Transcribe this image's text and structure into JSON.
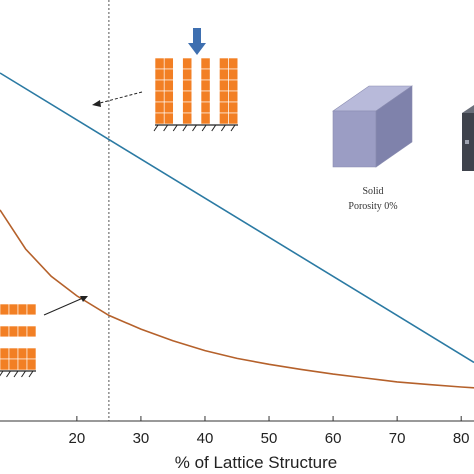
{
  "chart_data": {
    "type": "line",
    "xlabel": "% of Lattice Structure",
    "xlim": [
      8,
      82
    ],
    "ylim": [
      0,
      1
    ],
    "x_ticks": [
      20,
      30,
      40,
      50,
      60,
      70,
      80
    ],
    "x_tick_labels": [
      "20",
      "30",
      "40",
      "50",
      "60",
      "70",
      "80"
    ],
    "grid": false,
    "reference_line": {
      "x": 25,
      "style": "dotted"
    },
    "series": [
      {
        "color": "#2b7aa3",
        "x": [
          8,
          82
        ],
        "y": [
          0.89,
          0.15
        ]
      },
      {
        "color": "#b5612b",
        "x": [
          8,
          12,
          16,
          20,
          25,
          30,
          35,
          40,
          45,
          50,
          55,
          60,
          65,
          70,
          75,
          80,
          82
        ],
        "y": [
          0.54,
          0.44,
          0.37,
          0.32,
          0.27,
          0.235,
          0.205,
          0.18,
          0.16,
          0.145,
          0.132,
          0.12,
          0.11,
          0.1,
          0.093,
          0.087,
          0.085
        ]
      }
    ],
    "annotations": [
      {
        "text": "Solid",
        "lines": [
          "Solid",
          "Porosity 0%"
        ]
      }
    ]
  },
  "cube": {
    "line1": "Solid",
    "line2": "Porosity 0%"
  },
  "colors": {
    "lattice_orange": "#f27f24",
    "arrow_blue": "#3e6fb0",
    "cube_face_front": "#9b9dc4",
    "cube_face_top": "#b8bada",
    "cube_face_side": "#7f82ab"
  }
}
